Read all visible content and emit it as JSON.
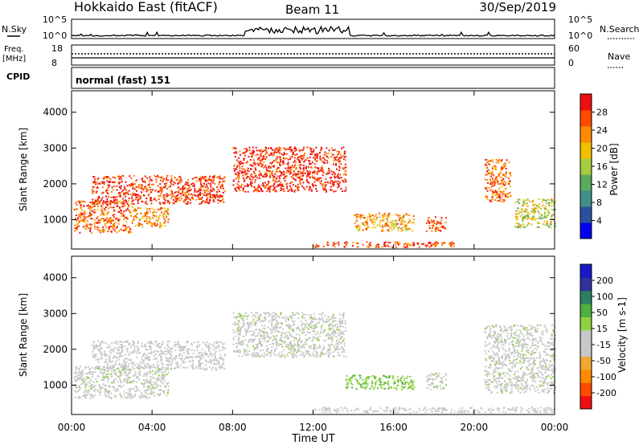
{
  "header": {
    "station": "Hokkaido East (fitACF)",
    "beam": "Beam 11",
    "date": "30/Sep/2019"
  },
  "small_panels": {
    "nsky_label": "N.Sky",
    "nsearch_label": "N.Search",
    "noise_ticks_left": [
      "10^5",
      "10^0"
    ],
    "noise_ticks_right": [
      "10^5",
      "10^0"
    ],
    "freq_label": "Freq.",
    "freq_unit": "[MHz]",
    "freq_ticks": [
      "18",
      "8"
    ],
    "nave_label": "Nave",
    "nave_ticks": [
      "60",
      "0"
    ],
    "cpid_label": "CPID",
    "cpid_text": "normal (fast) 151"
  },
  "axes": {
    "xlabel": "Time UT",
    "ylabel": "Slant Range [km]",
    "x_ticks": [
      "00:00",
      "04:00",
      "08:00",
      "12:00",
      "16:00",
      "20:00",
      "00:00"
    ],
    "y_ticks": [
      "1000",
      "2000",
      "3000",
      "4000"
    ]
  },
  "colors": {
    "power": [
      "#0000ee",
      "#2a50a0",
      "#3f8f8a",
      "#5aaa60",
      "#a8cc40",
      "#f0c000",
      "#ff8c00",
      "#ff4a00",
      "#ee1010"
    ],
    "velocity": [
      "#ee1010",
      "#ff4a00",
      "#ff8c00",
      "#f0a830",
      "#c8c8c8",
      "#c8c8c8",
      "#8fd040",
      "#4fb040",
      "#2a7f60",
      "#30309f",
      "#1818c8"
    ]
  },
  "chart_data": {
    "type": "heatmap",
    "title": "Hokkaido East (fitACF)",
    "xlabel": "Time UT",
    "ylabel": "Slant Range [km]",
    "xlim": [
      "00:00",
      "24:00"
    ],
    "ylim": [
      180,
      4600
    ],
    "panels": [
      {
        "name": "Power",
        "colorbar_label": "Power [dB]",
        "colorbar_ticks": [
          "4",
          "8",
          "12",
          "16",
          "20",
          "24",
          "28"
        ],
        "colorbar_range": [
          0,
          32
        ],
        "regions": [
          {
            "t0": 1.0,
            "t1": 7.6,
            "r0": 1450,
            "r1": 2250,
            "level": 0.88
          },
          {
            "t0": 0.1,
            "t1": 3.0,
            "r0": 650,
            "r1": 1550,
            "level": 0.8
          },
          {
            "t0": 3.0,
            "t1": 4.8,
            "r0": 800,
            "r1": 1350,
            "level": 0.72
          },
          {
            "t0": 8.0,
            "t1": 13.6,
            "r0": 1800,
            "r1": 3050,
            "level": 0.9
          },
          {
            "t0": 17.6,
            "t1": 18.6,
            "r0": 700,
            "r1": 1100,
            "level": 0.85
          },
          {
            "t0": 20.5,
            "t1": 21.8,
            "r0": 1500,
            "r1": 2700,
            "level": 0.78
          },
          {
            "t0": 22.0,
            "t1": 24.0,
            "r0": 800,
            "r1": 1600,
            "level": 0.55
          },
          {
            "t0": 12.0,
            "t1": 19.0,
            "r0": 250,
            "r1": 400,
            "level": 0.82
          },
          {
            "t0": 14.0,
            "t1": 17.0,
            "r0": 700,
            "r1": 1200,
            "level": 0.7
          }
        ]
      },
      {
        "name": "Velocity",
        "colorbar_label": "Velocity [m s-1]",
        "colorbar_ticks": [
          "-200",
          "-100",
          "-50",
          "-15",
          "15",
          "50",
          "100",
          "200"
        ],
        "colorbar_range": [
          -250,
          250
        ],
        "regions": [
          {
            "t0": 1.0,
            "t1": 7.6,
            "r0": 1450,
            "r1": 2250,
            "level": -20
          },
          {
            "t0": 0.1,
            "t1": 4.8,
            "r0": 650,
            "r1": 1550,
            "level": 0
          },
          {
            "t0": 8.0,
            "t1": 13.6,
            "r0": 1800,
            "r1": 3050,
            "level": 0
          },
          {
            "t0": 13.6,
            "t1": 17.0,
            "r0": 900,
            "r1": 1300,
            "level": 60
          },
          {
            "t0": 17.6,
            "t1": 18.6,
            "r0": 900,
            "r1": 1350,
            "level": 0
          },
          {
            "t0": 20.5,
            "t1": 24.0,
            "r0": 800,
            "r1": 2700,
            "level": 0
          },
          {
            "t0": 12.0,
            "t1": 24.0,
            "r0": 250,
            "r1": 400,
            "level": -30
          }
        ]
      }
    ]
  }
}
